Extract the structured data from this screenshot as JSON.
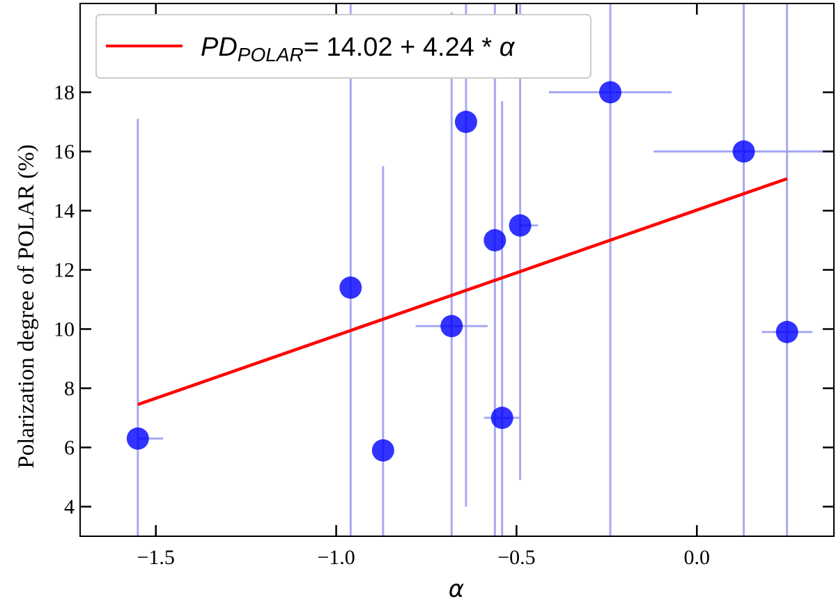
{
  "chart_data": {
    "type": "scatter",
    "xlabel": "α",
    "ylabel": "Polarization degree of POLAR (%)",
    "xlim": [
      -1.71,
      0.38
    ],
    "ylim": [
      3.0,
      21.0
    ],
    "xticks": [
      -1.5,
      -1.0,
      -0.5,
      0.0
    ],
    "xtick_labels": [
      "−1.5",
      "−1.0",
      "−0.5",
      "0.0"
    ],
    "yticks": [
      4,
      6,
      8,
      10,
      12,
      14,
      16,
      18
    ],
    "ytick_labels": [
      "4",
      "6",
      "8",
      "10",
      "12",
      "14",
      "16",
      "18"
    ],
    "grid": false,
    "legend_position": "top-left",
    "colors": {
      "points": "#0000ff",
      "errorbars": "#9999f0",
      "fit": "#ff0000"
    },
    "series": [
      {
        "type": "scatter",
        "points": [
          {
            "x": -1.55,
            "y": 6.3,
            "xerr": [
              0.0,
              0.07
            ],
            "yerr": [
              4.0,
              10.8
            ]
          },
          {
            "x": -0.96,
            "y": 11.4,
            "xerr": [
              0.0,
              0.0
            ],
            "yerr": [
              9.0,
              9.6
            ]
          },
          {
            "x": -0.87,
            "y": 5.9,
            "xerr": [
              0.0,
              0.0
            ],
            "yerr": [
              3.0,
              9.6
            ]
          },
          {
            "x": -0.68,
            "y": 10.1,
            "xerr": [
              0.1,
              0.1
            ],
            "yerr": [
              8.0,
              10.6
            ]
          },
          {
            "x": -0.64,
            "y": 17.0,
            "xerr": [
              0.0,
              0.0
            ],
            "yerr": [
              13.0,
              4.0
            ]
          },
          {
            "x": -0.56,
            "y": 13.0,
            "xerr": [
              0.0,
              0.0
            ],
            "yerr": [
              10.0,
              8.0
            ]
          },
          {
            "x": -0.54,
            "y": 7.0,
            "xerr": [
              0.05,
              0.05
            ],
            "yerr": [
              4.0,
              10.7
            ]
          },
          {
            "x": -0.49,
            "y": 13.5,
            "xerr": [
              0.0,
              0.05
            ],
            "yerr": [
              8.6,
              7.5
            ]
          },
          {
            "x": -0.24,
            "y": 18.0,
            "xerr": [
              0.17,
              0.17
            ],
            "yerr": [
              15.0,
              3.0
            ]
          },
          {
            "x": 0.13,
            "y": 16.0,
            "xerr": [
              0.25,
              0.25
            ],
            "yerr": [
              13.0,
              5.0
            ]
          },
          {
            "x": 0.25,
            "y": 9.9,
            "xerr": [
              0.07,
              0.07
            ],
            "yerr": [
              6.9,
              11.1
            ]
          }
        ]
      },
      {
        "type": "line",
        "name": "PDPOLAR= 14.02 + 4.24 * α",
        "x": [
          -1.55,
          0.25
        ],
        "y": [
          7.45,
          15.08
        ]
      }
    ],
    "legend": {
      "label_main": "PD",
      "label_sub": "POLAR",
      "label_rest": "= 14.02 + 4.24 * ",
      "label_alpha": "α"
    }
  }
}
